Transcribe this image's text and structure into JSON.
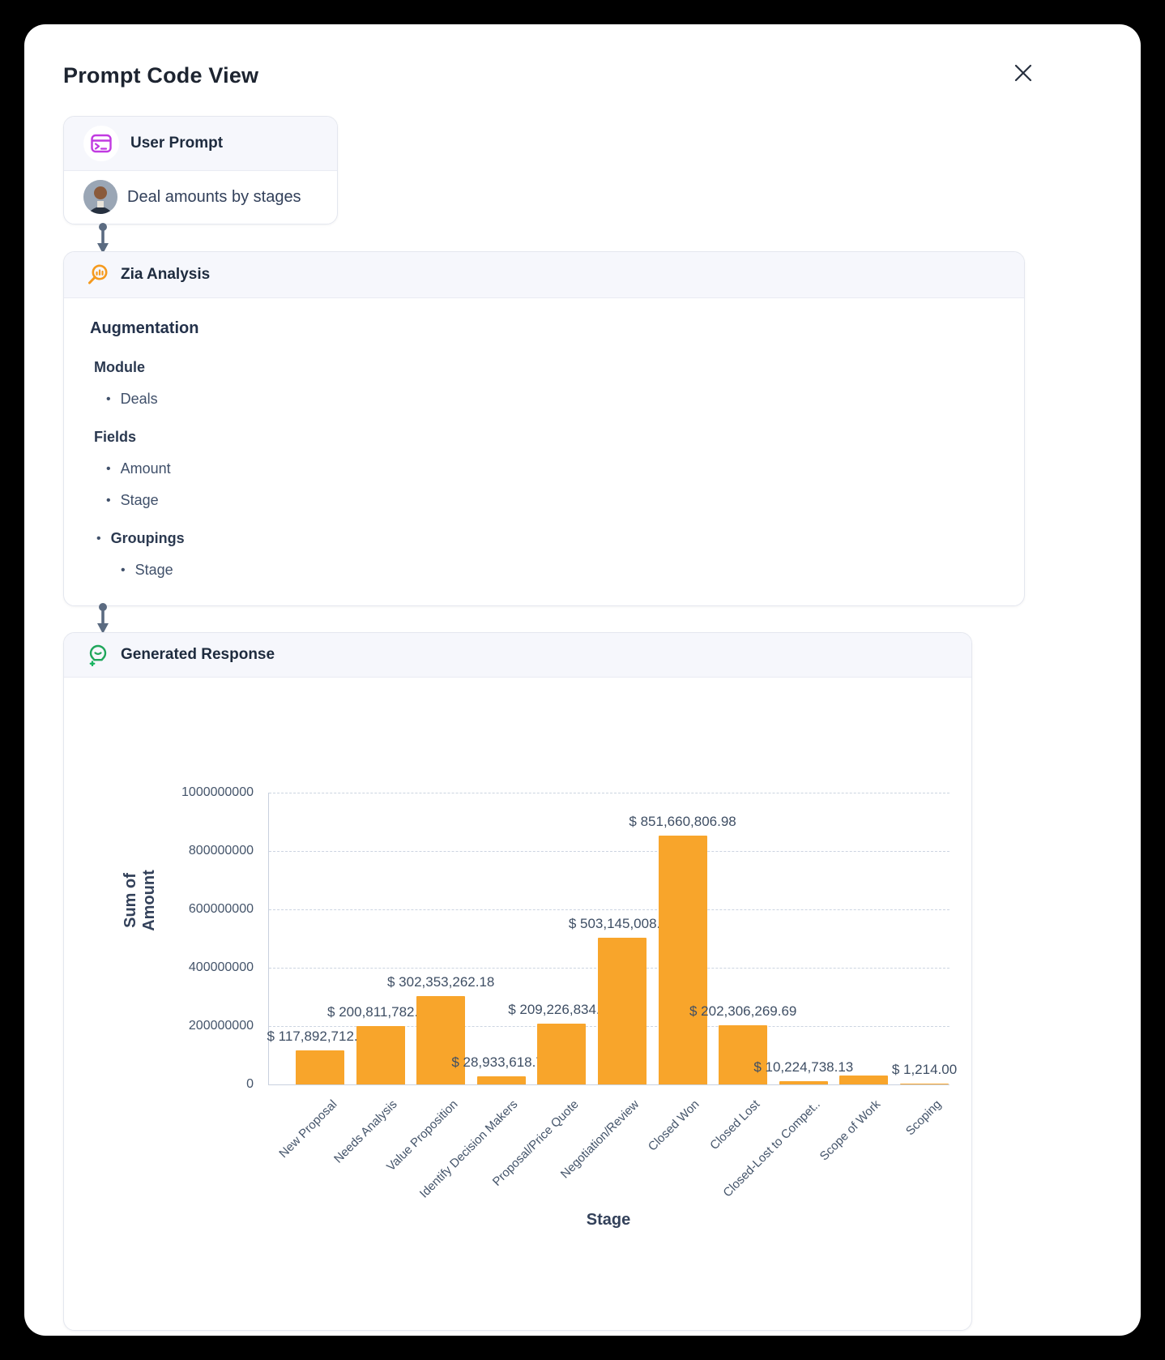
{
  "modal": {
    "title": "Prompt Code View",
    "close_label": "✕"
  },
  "user_prompt": {
    "title": "User Prompt",
    "prompt_text": "Deal amounts by stages"
  },
  "zia_analysis": {
    "title": "Zia Analysis",
    "section_title": "Augmentation",
    "groups": [
      {
        "label": "Module",
        "items": [
          "Deals"
        ]
      },
      {
        "label": "Fields",
        "items": [
          "Amount",
          "Stage"
        ]
      },
      {
        "label": "Groupings",
        "items": [
          "Stage"
        ]
      }
    ]
  },
  "generated_response": {
    "title": "Generated Response"
  },
  "chart_data": {
    "type": "bar",
    "title": "",
    "xlabel": "Stage",
    "ylabel": "Sum of Amount",
    "ylim": [
      0,
      1000000000
    ],
    "yticks": [
      0,
      200000000,
      400000000,
      600000000,
      800000000,
      1000000000
    ],
    "grid": "horizontal-dashed",
    "legend": "none",
    "bar_color": "#F8A52B",
    "categories": [
      "New Proposal",
      "Needs Analysis",
      "Value Proposition",
      "Identify Decision Makers",
      "Proposal/Price Quote",
      "Negotiation/Review",
      "Closed Won",
      "Closed Lost",
      "Closed-Lost to Compet..",
      "Scope of Work",
      "Scoping"
    ],
    "values": [
      117892712.48,
      200811782.53,
      302353262.18,
      28933618.74,
      209226834.9,
      503145008.46,
      851660806.98,
      202306269.69,
      10224738.13,
      30000000,
      1214.0
    ],
    "value_labels": [
      "$ 117,892,712.48",
      "$ 200,811,782.53",
      "$ 302,353,262.18",
      "$ 28,933,618.74",
      "$ 209,226,834.90",
      "$ 503,145,008.46",
      "$ 851,660,806.98",
      "$ 202,306,269.69",
      "$ 10,224,738.13",
      "",
      "$ 1,214.00"
    ]
  },
  "colors": {
    "accent_purple": "#c13ae1",
    "accent_orange": "#f59a1e",
    "accent_green": "#1fa65b",
    "connector": "#5b6b81",
    "bar": "#F8A52B"
  }
}
